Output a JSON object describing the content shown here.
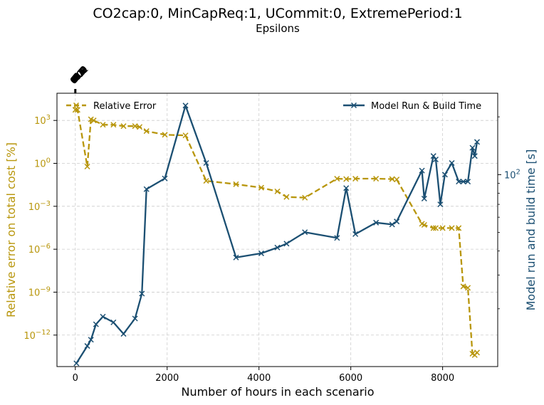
{
  "chart_data": {
    "type": "line",
    "title": "CO2cap:0, MinCapReq:1, UCommit:0, ExtremePeriod:1",
    "subtitle": "Epsilons",
    "xlabel": "Number of hours in each scenario",
    "ylabel_left": "Relative error on total cost [%]",
    "ylabel_right": "Model run and build time [s]",
    "xlim": [
      -400,
      9200
    ],
    "x_ticks": [
      0,
      2000,
      4000,
      6000,
      8000
    ],
    "x_tick_labels": [
      "0",
      "2000",
      "4000",
      "6000",
      "8000"
    ],
    "ylim_left_log10": [
      -14.2,
      4.9
    ],
    "y_left_ticks_exp": [
      3,
      0,
      -3,
      -6,
      -9,
      -12
    ],
    "y_left_tick_labels": [
      "10",
      "10",
      "10",
      "10",
      "10",
      "10"
    ],
    "y_left_tick_exponents": [
      "3",
      "0",
      "−3",
      "−6",
      "−9",
      "−12"
    ],
    "y_left_scale": "log",
    "ylim_right_log10": [
      1.0,
      2.424
    ],
    "y_right_ticks_exp": [
      2
    ],
    "y_right_tick_labels": [
      "10"
    ],
    "y_right_tick_exponents": [
      "2"
    ],
    "y_right_scale": "log",
    "grid": true,
    "legend_left": "top-left",
    "legend_right": "top-right",
    "top_axis_tick_labels": [
      "0.0",
      "0.01",
      "0.1",
      "0.2",
      "0.3",
      "0.4",
      "0.5",
      "0.6",
      "0.7",
      "0.8",
      "0.9",
      "1.0"
    ],
    "series": [
      {
        "name": "Relative Error",
        "axis": "left",
        "color": "#b8960c",
        "linestyle": "dashed",
        "marker": "x",
        "x": [
          0,
          48,
          260,
          340,
          400,
          600,
          830,
          1050,
          1300,
          1400,
          1550,
          1950,
          2400,
          2850,
          3500,
          4050,
          4400,
          4600,
          5000,
          5700,
          5900,
          6100,
          6550,
          6900,
          7000,
          7550,
          7600,
          7800,
          7850,
          8000,
          8200,
          8350,
          8450,
          8550,
          8650,
          8700,
          8750
        ],
        "y": [
          5500,
          5500,
          0.6,
          1200,
          1000,
          500,
          500,
          400,
          400,
          350,
          180,
          100,
          90,
          0.06,
          0.035,
          0.02,
          0.011,
          0.0045,
          0.004,
          0.085,
          0.08,
          0.085,
          0.085,
          0.08,
          0.075,
          6e-05,
          5e-05,
          3e-05,
          3e-05,
          3e-05,
          3e-05,
          3e-05,
          2.5e-09,
          2e-09,
          5e-14,
          4e-14,
          6e-14
        ]
      },
      {
        "name": "Model Run & Build Time",
        "axis": "right",
        "color": "#1b4f72",
        "linestyle": "solid",
        "marker": "x",
        "x": [
          24,
          260,
          340,
          450,
          600,
          830,
          1050,
          1300,
          1450,
          1550,
          1950,
          2400,
          2850,
          3500,
          4050,
          4400,
          4600,
          5000,
          5700,
          5900,
          6100,
          6550,
          6900,
          7000,
          7550,
          7600,
          7800,
          7850,
          7950,
          8050,
          8200,
          8350,
          8450,
          8550,
          8650,
          8700,
          8750
        ],
        "y": [
          10.4,
          12.8,
          13.8,
          16.6,
          18.2,
          17.0,
          14.8,
          17.8,
          24.0,
          84.0,
          95.5,
          229.0,
          115.0,
          37.0,
          38.9,
          41.7,
          43.7,
          50.1,
          46.8,
          85.1,
          49.0,
          56.2,
          55.0,
          57.0,
          105.0,
          75.0,
          125.0,
          120.0,
          70.0,
          100.0,
          115.0,
          92.0,
          92.0,
          92.0,
          138.0,
          125.0,
          148.0
        ]
      }
    ]
  }
}
